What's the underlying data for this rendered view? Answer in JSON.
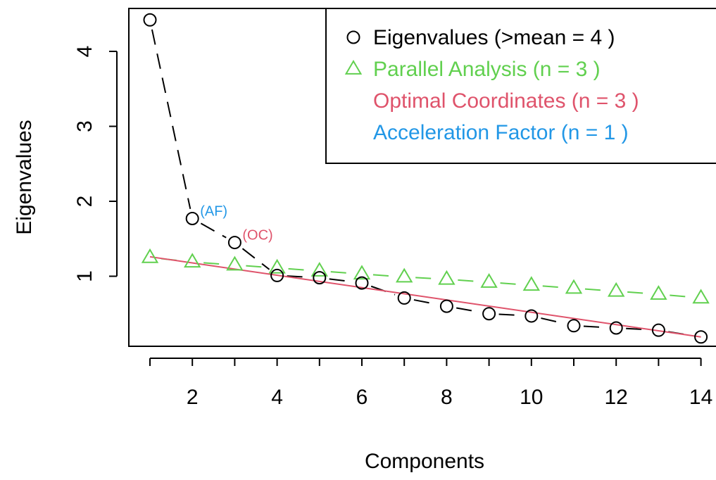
{
  "chart_data": {
    "type": "line",
    "title": "",
    "xlabel": "Components",
    "ylabel": "Eigenvalues",
    "xlim": [
      0.5,
      14.5
    ],
    "ylim": [
      0.05,
      4.55
    ],
    "x_ticks": [
      2,
      4,
      6,
      8,
      10,
      12,
      14
    ],
    "y_ticks": [
      1,
      2,
      3,
      4
    ],
    "grid": false,
    "legend_position": "top-right",
    "x": [
      1,
      2,
      3,
      4,
      5,
      6,
      7,
      8,
      9,
      10,
      11,
      12,
      13,
      14
    ],
    "series": [
      {
        "key": "eigen",
        "legend_label": "Eigenvalues (>mean  =  4 )",
        "color": "#000000",
        "marker": "circle",
        "line": "solid",
        "values": [
          4.42,
          1.77,
          1.45,
          1.01,
          0.98,
          0.91,
          0.71,
          0.6,
          0.5,
          0.47,
          0.34,
          0.31,
          0.28,
          0.19
        ]
      },
      {
        "key": "parallel",
        "legend_label": "Parallel Analysis (n =  3 )",
        "color": "#61D04F",
        "marker": "triangle",
        "line": "dashed",
        "values": [
          1.25,
          1.19,
          1.15,
          1.11,
          1.07,
          1.03,
          0.99,
          0.96,
          0.92,
          0.88,
          0.84,
          0.8,
          0.76,
          0.71
        ]
      },
      {
        "key": "optimal",
        "legend_label": "Optimal Coordinates (n =  3 )",
        "color": "#DF536B",
        "marker": "none",
        "line": "solid",
        "x_line": [
          1,
          14
        ],
        "values_line": [
          1.26,
          0.19
        ]
      },
      {
        "key": "acceleration",
        "legend_label": "Acceleration Factor (n =  1 )",
        "color": "#2297E6",
        "marker": "none",
        "line": "none"
      }
    ],
    "annotations": [
      {
        "text": "(AF)",
        "x": 2,
        "color": "#2297E6"
      },
      {
        "text": "(OC)",
        "x": 3,
        "color": "#DF536B"
      }
    ]
  }
}
